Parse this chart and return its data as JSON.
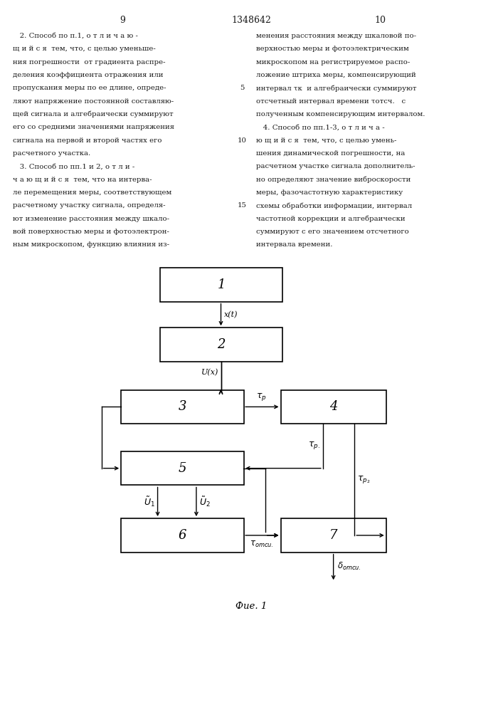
{
  "page_number_left": "9",
  "patent_number": "1348642",
  "page_number_right": "10",
  "background_color": "#ffffff",
  "text_color": "#1a1a1a",
  "left_col_lines": [
    "   2. Способ по п.1, о т л и ч а ю -",
    "щ и й с я  тем, что, с целью уменьше-",
    "ния погрешности  от градиента распре-",
    "деления коэффициента отражения или",
    "пропускания меры по ее длине, опреде-",
    "ляют напряжение постоянной составляю-",
    "щей сигнала и алгебраически суммируют",
    "его со средними значениями напряжения",
    "сигнала на первой и второй частях его",
    "расчетного участка.",
    "   3. Способ по пп.1 и 2, о т л и -",
    "ч а ю щ и й с я  тем, что на интерва-",
    "ле перемещения меры, соответствующем",
    "расчетному участку сигнала, определя-",
    "ют изменение расстояния между шкало-",
    "вой поверхностью меры и фотоэлектрон-",
    "ным микроскопом, функцию влияния из-"
  ],
  "right_col_lines": [
    "менения расстояния между шкаловой по-",
    "верхностью меры и фотоэлектрическим",
    "микроскопом на регистрируемое распо-",
    "ложение штриха меры, компенсирующий",
    "интервал τк  и алгебраически суммируют",
    "отсчетный интервал времени τотсч.   с",
    "полученным компенсирующим интервалом.",
    "   4. Способ по пп.1-3, о т л и ч а -",
    "ю щ и й с я  тем, что, с целью умень-",
    "шения динамической погрешности, на",
    "расчетном участке сигнала дополнитель-",
    "но определяют значение виброскорости",
    "меры, фазочастотную характеристику",
    "схемы обработки информации, интервал",
    "частотной коррекции и алгебраически",
    "суммируют с его значением отсчетного",
    "интервала времени."
  ],
  "line_numbers": {
    "4": "5",
    "8": "10",
    "13": "15"
  },
  "fig_caption": "Фие. 1"
}
